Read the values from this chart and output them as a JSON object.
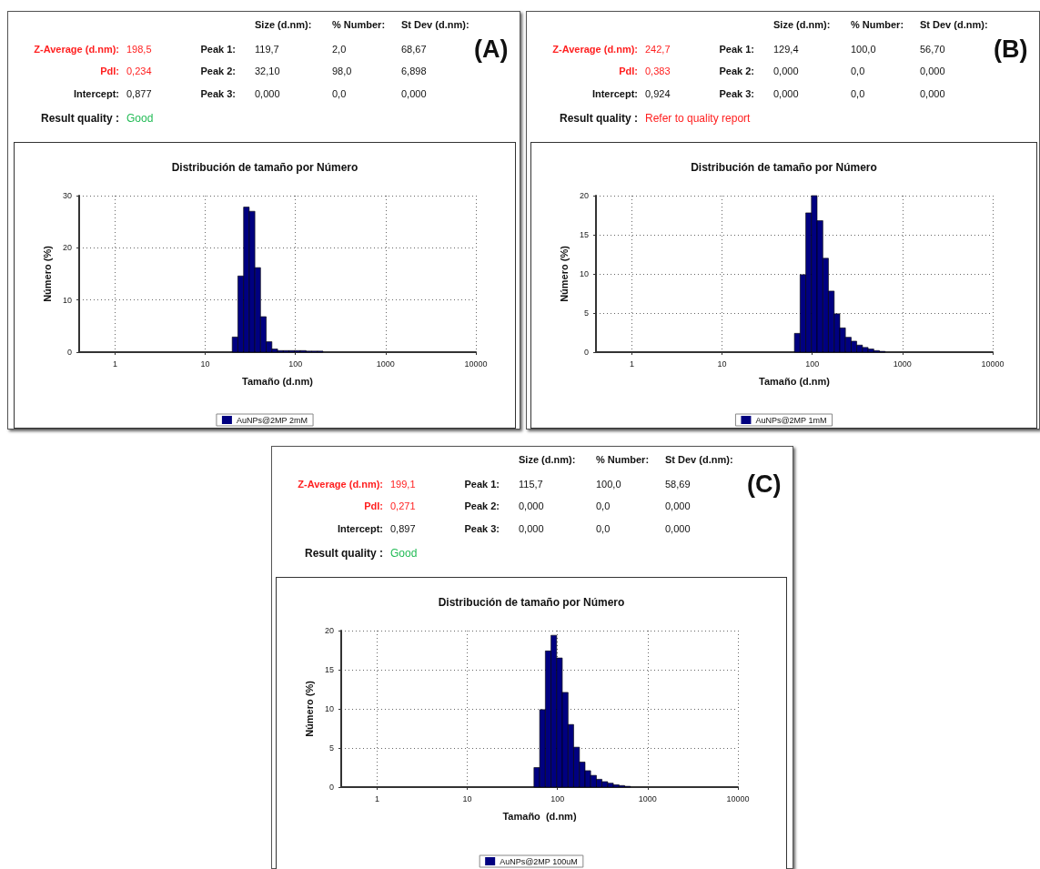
{
  "chart_data": [
    {
      "type": "histogram",
      "title": "Distribución de tamaño por Número",
      "xlabel": "Tamaño (d.nm)",
      "ylabel": "Número (%)",
      "annotations": [
        "Size (d.nm):",
        "% Number:",
        "St Dev (d.nm):",
        "Z-Average (d.nm):",
        "198,5",
        "Peak 1:",
        "119,7",
        "2,0",
        "68,67",
        "PdI:",
        "0,234",
        "Peak 2:",
        "32,10",
        "98,0",
        "6,898",
        "Intercept:",
        "0,877",
        "Peak 3:",
        "0,000",
        "0,0",
        "0,000",
        "Result quality :",
        "Good",
        "(A)"
      ],
      "log": "x",
      "xlim": [
        0.4,
        10000
      ],
      "xticks": [
        1,
        10,
        100,
        1000,
        10000
      ],
      "ylim": [
        0,
        30
      ],
      "yticks": [
        0,
        10,
        20,
        30
      ],
      "grid": true,
      "legend": "bottom",
      "bins": [
        19.9,
        23.0,
        26.6,
        30.7,
        35.5,
        41.0,
        47.4,
        54.8,
        63.4,
        73.3,
        84.7,
        97.8,
        113,
        131,
        151,
        175,
        202
      ],
      "series": [
        {
          "name": "AuNPs@2MP 2mM",
          "color": "#000080",
          "values": [
            2.9,
            14.6,
            27.8,
            27.0,
            16.2,
            6.8,
            2.0,
            0.6,
            0.3,
            0.3,
            0.3,
            0.3,
            0.3,
            0.2,
            0.2,
            0.2
          ]
        }
      ]
    },
    {
      "type": "histogram",
      "title": "Distribución de tamaño por Número",
      "xlabel": "Tamaño (d.nm)",
      "ylabel": "Número (%)",
      "annotations": [
        "Size (d.nm):",
        "% Number:",
        "St Dev (d.nm):",
        "Z-Average (d.nm):",
        "242,7",
        "Peak 1:",
        "129,4",
        "100,0",
        "56,70",
        "PdI:",
        "0,383",
        "Peak 2:",
        "0,000",
        "0,0",
        "0,000",
        "Intercept:",
        "0,924",
        "Peak 3:",
        "0,000",
        "0,0",
        "0,000",
        "Result quality :",
        "Refer to quality report",
        "(B)"
      ],
      "log": "x",
      "xlim": [
        0.4,
        10000
      ],
      "xticks": [
        1,
        10,
        100,
        1000,
        10000
      ],
      "ylim": [
        0,
        20
      ],
      "yticks": [
        0,
        5,
        10,
        15,
        20
      ],
      "grid": true,
      "legend": "bottom",
      "bins": [
        63.4,
        73.3,
        84.7,
        97.8,
        113,
        131,
        151,
        175,
        202,
        233,
        270,
        311,
        360,
        416,
        481,
        556,
        642
      ],
      "series": [
        {
          "name": "AuNPs@2MP 1mM",
          "color": "#000080",
          "values": [
            2.4,
            9.9,
            17.8,
            20.0,
            16.8,
            12.0,
            7.8,
            4.9,
            3.1,
            1.9,
            1.4,
            0.9,
            0.6,
            0.4,
            0.2,
            0.1
          ]
        }
      ]
    },
    {
      "type": "histogram",
      "title": "Distribución de tamaño por Número",
      "xlabel": "Tamaño  (d.nm)",
      "ylabel": "Número (%)",
      "annotations": [
        "Size (d.nm):",
        "% Number:",
        "St Dev (d.nm):",
        "Z-Average (d.nm):",
        "199,1",
        "Peak 1:",
        "115,7",
        "100,0",
        "58,69",
        "PdI:",
        "0,271",
        "Peak 2:",
        "0,000",
        "0,0",
        "0,000",
        "Intercept:",
        "0,897",
        "Peak 3:",
        "0,000",
        "0,0",
        "0,000",
        "Result quality :",
        "Good",
        "(C)"
      ],
      "log": "x",
      "xlim": [
        0.4,
        10000
      ],
      "xticks": [
        1,
        10,
        100,
        1000,
        10000
      ],
      "ylim": [
        0,
        20
      ],
      "yticks": [
        0,
        5,
        10,
        15,
        20
      ],
      "grid": true,
      "legend": "bottom",
      "bins": [
        54.8,
        63.4,
        73.3,
        84.7,
        97.8,
        113,
        131,
        151,
        175,
        202,
        233,
        270,
        311,
        360,
        416,
        481,
        556,
        642
      ],
      "series": [
        {
          "name": "AuNPs@2MP 100uM",
          "color": "#000080",
          "values": [
            2.5,
            9.9,
            17.4,
            19.4,
            16.5,
            12.1,
            8.0,
            5.1,
            3.2,
            2.1,
            1.5,
            1.0,
            0.7,
            0.5,
            0.3,
            0.2,
            0.1
          ]
        }
      ]
    }
  ]
}
